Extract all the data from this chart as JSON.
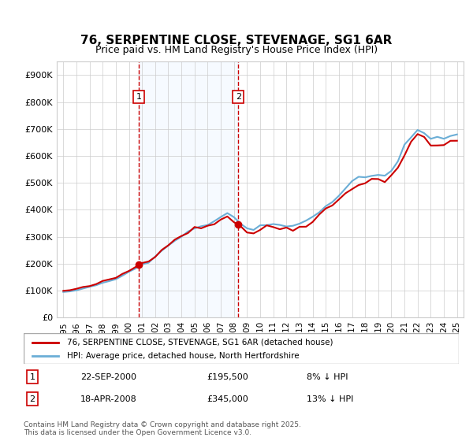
{
  "title": "76, SERPENTINE CLOSE, STEVENAGE, SG1 6AR",
  "subtitle": "Price paid vs. HM Land Registry's House Price Index (HPI)",
  "legend_line1": "76, SERPENTINE CLOSE, STEVENAGE, SG1 6AR (detached house)",
  "legend_line2": "HPI: Average price, detached house, North Hertfordshire",
  "footer": "Contains HM Land Registry data © Crown copyright and database right 2025.\nThis data is licensed under the Open Government Licence v3.0.",
  "sale1_date": "2000-09-22",
  "sale1_label": "22-SEP-2000",
  "sale1_price": 195500,
  "sale1_price_str": "£195,500",
  "sale1_hpi_pct": "8% ↓ HPI",
  "sale2_date": "2008-04-18",
  "sale2_label": "18-APR-2008",
  "sale2_price": 345000,
  "sale2_price_str": "£345,000",
  "sale2_hpi_pct": "13% ↓ HPI",
  "hpi_color": "#6baed6",
  "price_color": "#cc0000",
  "vline_color": "#cc0000",
  "shade_color": "#ddeeff",
  "ylim": [
    0,
    950000
  ],
  "yticks": [
    0,
    100000,
    200000,
    300000,
    400000,
    500000,
    600000,
    700000,
    800000,
    900000
  ],
  "ytick_labels": [
    "£0",
    "£100K",
    "£200K",
    "£300K",
    "£400K",
    "£500K",
    "£600K",
    "£700K",
    "£800K",
    "£900K"
  ]
}
